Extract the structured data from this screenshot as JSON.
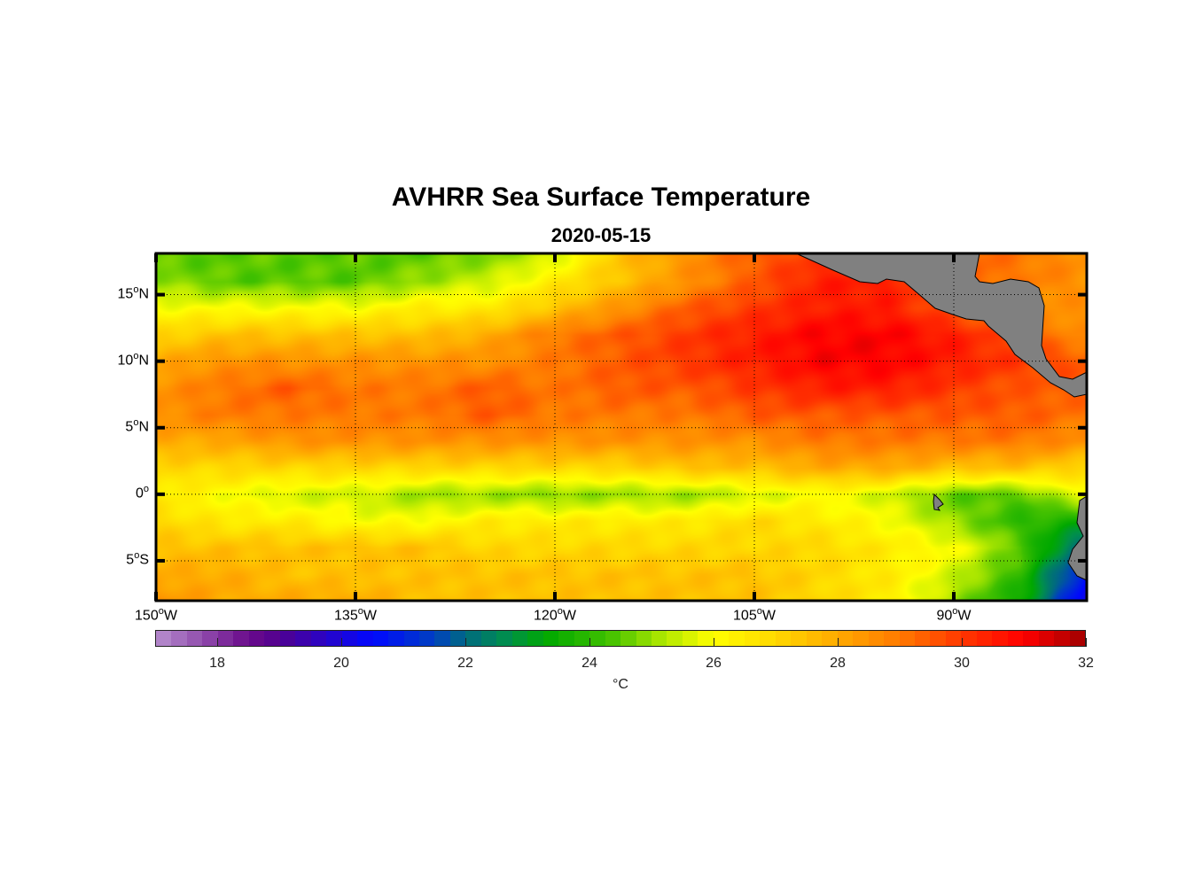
{
  "title": "AVHRR Sea Surface Temperature",
  "subtitle": "2020-05-15",
  "chart_data": {
    "type": "heatmap",
    "title": "AVHRR Sea Surface Temperature",
    "subtitle": "2020-05-15",
    "lon_range": [
      -150,
      -80
    ],
    "lat_range": [
      -8,
      18.1
    ],
    "x_ticks": [
      {
        "value": -150,
        "label_num": "150",
        "label_sup": "o",
        "label_dir": "W"
      },
      {
        "value": -135,
        "label_num": "135",
        "label_sup": "o",
        "label_dir": "W"
      },
      {
        "value": -120,
        "label_num": "120",
        "label_sup": "o",
        "label_dir": "W"
      },
      {
        "value": -105,
        "label_num": "105",
        "label_sup": "o",
        "label_dir": "W"
      },
      {
        "value": -90,
        "label_num": "90",
        "label_sup": "o",
        "label_dir": "W"
      }
    ],
    "y_ticks": [
      {
        "value": 15,
        "label_num": "15",
        "label_sup": "o",
        "label_dir": "N"
      },
      {
        "value": 10,
        "label_num": "10",
        "label_sup": "o",
        "label_dir": "N"
      },
      {
        "value": 5,
        "label_num": "5",
        "label_sup": "o",
        "label_dir": "N"
      },
      {
        "value": 0,
        "label_num": "0",
        "label_sup": "o",
        "label_dir": ""
      },
      {
        "value": -5,
        "label_num": "5",
        "label_sup": "o",
        "label_dir": "S"
      }
    ],
    "grid": true,
    "grid_lons": [
      -150,
      -145,
      -140,
      -135,
      -130,
      -125,
      -120,
      -115,
      -110,
      -105,
      -100,
      -95,
      -90,
      -85,
      -80
    ],
    "grid_lats": [
      18,
      16,
      14,
      12,
      10,
      8,
      6,
      4,
      2,
      0,
      -2,
      -4,
      -6,
      -8
    ],
    "sst": [
      [
        24.5,
        24.5,
        24.5,
        24.5,
        24.5,
        24.8,
        25.5,
        27.5,
        28.5,
        29.5,
        30,
        30,
        29.5,
        29,
        28.5
      ],
      [
        25,
        24.5,
        24.5,
        24.5,
        25,
        25.5,
        26.5,
        27.5,
        28.5,
        29.5,
        30.5,
        30.5,
        29.5,
        29,
        28.5
      ],
      [
        26,
        26,
        26,
        26,
        26.5,
        26.5,
        27.5,
        28.5,
        29.5,
        30,
        30.5,
        30.5,
        29.5,
        28.5,
        28.5
      ],
      [
        27,
        27.5,
        27.5,
        27.5,
        27.5,
        28,
        29,
        29.5,
        30,
        30.5,
        31,
        31,
        30.5,
        29.5,
        28.5
      ],
      [
        28,
        28.5,
        28.5,
        28.5,
        28.5,
        28.5,
        29,
        29.5,
        30,
        30.5,
        31,
        31,
        30.5,
        30,
        29.5
      ],
      [
        28.5,
        29,
        29.5,
        29,
        29,
        29.5,
        29,
        29.5,
        29.5,
        30,
        30.5,
        30.5,
        30,
        29.5,
        29.5
      ],
      [
        28.5,
        29,
        29,
        29,
        29,
        29.5,
        29,
        29,
        29,
        29.5,
        29.5,
        29.5,
        29.5,
        29.5,
        29
      ],
      [
        28,
        28,
        28.5,
        28.5,
        28.5,
        28.5,
        28.5,
        28.5,
        28.5,
        28.5,
        29,
        29,
        29,
        29,
        28.5
      ],
      [
        27,
        27,
        27,
        27,
        27,
        27,
        27,
        27,
        27.5,
        27.5,
        28,
        28,
        27.5,
        27.5,
        27
      ],
      [
        26.5,
        26,
        25.5,
        25.5,
        25,
        25,
        24.8,
        25,
        25,
        25.5,
        26,
        25.5,
        24.5,
        24.5,
        26
      ],
      [
        27,
        26.5,
        26.5,
        26,
        26,
        26.5,
        26.5,
        26.5,
        26.5,
        27,
        26.5,
        26,
        25,
        24,
        23.5
      ],
      [
        27.5,
        27.5,
        27.5,
        27.5,
        27.5,
        27,
        27,
        27,
        27,
        27,
        27,
        26.5,
        26,
        24.5,
        21.5
      ],
      [
        28,
        28,
        27.5,
        27.5,
        27.5,
        27.5,
        27.5,
        27.5,
        27.5,
        27.5,
        27,
        26.5,
        25.5,
        24,
        20.5
      ],
      [
        28.5,
        28,
        28,
        28,
        27.5,
        27.5,
        27.5,
        27.5,
        27.5,
        27.5,
        27,
        26.5,
        25,
        23.5,
        20
      ]
    ],
    "land_color": "#808080",
    "colorbar": {
      "range": [
        17,
        32
      ],
      "ticks": [
        "18",
        "20",
        "22",
        "24",
        "26",
        "28",
        "30",
        "32"
      ],
      "tick_values": [
        18,
        20,
        22,
        24,
        26,
        28,
        30,
        32
      ],
      "label": "°C",
      "colormap": [
        [
          17,
          "#b78fcf"
        ],
        [
          18.5,
          "#6a0a8a"
        ],
        [
          19,
          "#500090"
        ],
        [
          20.5,
          "#0008ff"
        ],
        [
          21.5,
          "#0040c0"
        ],
        [
          22,
          "#006a80"
        ],
        [
          22.7,
          "#00904a"
        ],
        [
          23.3,
          "#00a800"
        ],
        [
          24.3,
          "#40c000"
        ],
        [
          25.2,
          "#b0e800"
        ],
        [
          26,
          "#ffff00"
        ],
        [
          27,
          "#ffd800"
        ],
        [
          28,
          "#ffaa00"
        ],
        [
          29,
          "#ff7a00"
        ],
        [
          30,
          "#ff3800"
        ],
        [
          31,
          "#ff0000"
        ],
        [
          32,
          "#a00000"
        ]
      ]
    }
  }
}
